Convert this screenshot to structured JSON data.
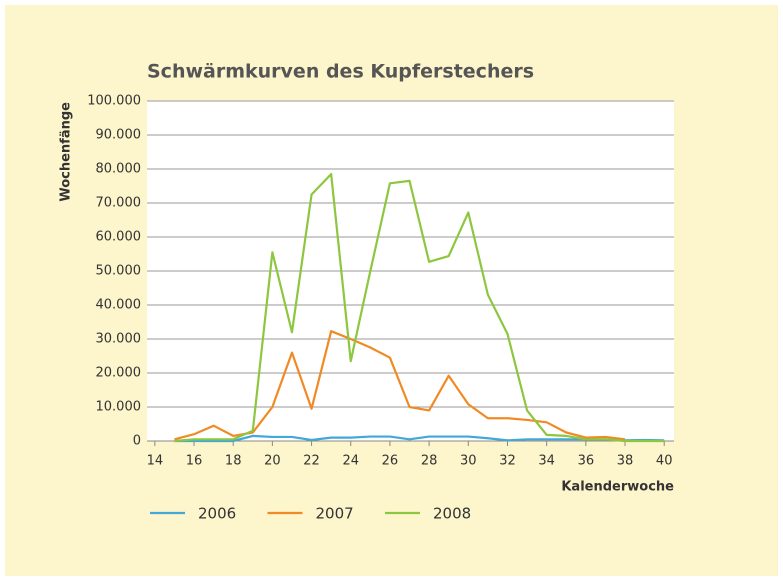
{
  "chart_data": {
    "type": "line",
    "title": "Schwärmkurven des Kupferstechers",
    "xlabel": "Kalenderwoche",
    "ylabel": "Wochenfänge",
    "x": [
      15,
      16,
      17,
      18,
      19,
      20,
      21,
      22,
      23,
      24,
      25,
      26,
      27,
      28,
      29,
      30,
      31,
      32,
      33,
      34,
      35,
      36,
      37,
      38,
      39,
      40
    ],
    "series": [
      {
        "name": "2006",
        "color": "#41a8d8",
        "values": [
          0,
          0,
          0,
          0,
          1500,
          1200,
          1200,
          300,
          1000,
          1000,
          1300,
          1300,
          500,
          1300,
          1300,
          1300,
          800,
          200,
          500,
          500,
          500,
          500,
          500,
          200,
          300,
          200
        ]
      },
      {
        "name": "2007",
        "color": "#f08a24",
        "values": [
          500,
          2000,
          4500,
          1500,
          2500,
          10000,
          26000,
          9500,
          32300,
          30000,
          27500,
          24500,
          10000,
          9000,
          19200,
          10800,
          6700,
          6700,
          6200,
          5500,
          2500,
          1000,
          1200,
          500,
          null,
          null
        ]
      },
      {
        "name": "2008",
        "color": "#8dc63f",
        "values": [
          0,
          500,
          500,
          500,
          3000,
          55500,
          32000,
          72500,
          78500,
          23500,
          50000,
          75800,
          76500,
          52700,
          54400,
          67200,
          43000,
          31500,
          9000,
          1800,
          1500,
          500,
          500,
          0,
          0,
          0
        ]
      }
    ],
    "xlim": [
      13.6,
      40.5
    ],
    "xticks": [
      14,
      16,
      18,
      20,
      22,
      24,
      26,
      28,
      30,
      32,
      34,
      36,
      38,
      40
    ],
    "ylim": [
      0,
      100000
    ],
    "yticks": [
      0,
      {
        "value": 10000,
        "label": "10.000"
      },
      {
        "value": 20000,
        "label": "20.000"
      },
      {
        "value": 30000,
        "label": "30.000"
      },
      {
        "value": 40000,
        "label": "40.000"
      },
      {
        "value": 50000,
        "label": "50.000"
      },
      {
        "value": 60000,
        "label": "60.000"
      },
      {
        "value": 70000,
        "label": "70.000"
      },
      {
        "value": 80000,
        "label": "80.000"
      },
      {
        "value": 90000,
        "label": "90.000"
      },
      {
        "value": 100000,
        "label": "100.000"
      }
    ],
    "grid": true,
    "legend": "bottom"
  }
}
